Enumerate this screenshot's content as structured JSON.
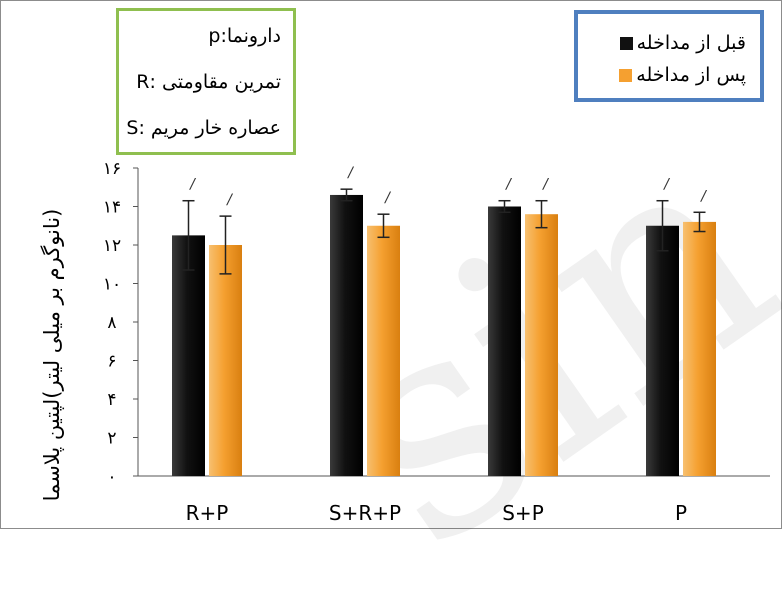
{
  "chart_data": {
    "type": "bar",
    "categories": [
      "R+P",
      "S+R+P",
      "S+P",
      "P"
    ],
    "ylabel": "(نانوگرم بر میلی لیتر)لپتین پلاسما",
    "ylim": [
      0,
      16
    ],
    "yticks": [
      "۰",
      "۲",
      "۴",
      "۶",
      "۸",
      "۱۰",
      "۱۲",
      "۱۴",
      "۱۶"
    ],
    "tick_values": [
      0,
      2,
      4,
      6,
      8,
      10,
      12,
      14,
      16
    ],
    "series": [
      {
        "name": "قبل از مداخله",
        "color": "#111111",
        "values": [
          12.5,
          14.6,
          14.0,
          13.0
        ],
        "errors": [
          1.8,
          0.3,
          0.3,
          1.3
        ]
      },
      {
        "name": "پس از مداخله",
        "color": "#f5a030",
        "values": [
          12.0,
          13.0,
          13.6,
          13.2
        ],
        "errors": [
          1.5,
          0.6,
          0.7,
          0.5
        ]
      }
    ],
    "significance_mark": "/",
    "grid": false,
    "legend_position": "top-right"
  },
  "key": {
    "lines": [
      "دارونما:p",
      "تمرین مقاومتی :R",
      "عصاره خار مریم :S"
    ]
  }
}
